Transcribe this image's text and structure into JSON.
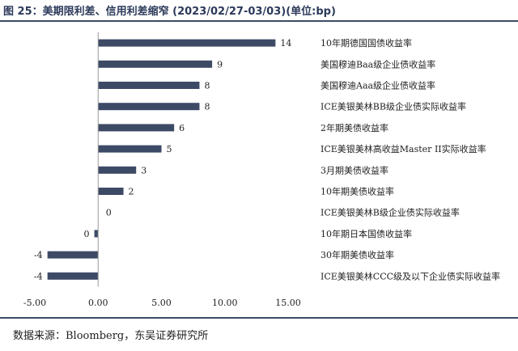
{
  "title": "图 25：美期限利差、信用利差缩窄 (2023/02/27-03/03)(单位:bp)",
  "source": "数据来源：Bloomberg，东吴证券研究所",
  "chart_data": {
    "type": "bar",
    "orientation": "horizontal",
    "categories": [
      "10年期德国国债收益率",
      "美国穆迪Baa级企业债收益率",
      "美国穆迪Aaa级企业债收益率",
      "ICE美银美林BB级企业债实际收益率",
      "2年期美债收益率",
      "ICE美银美林高收益Master II实际收益率",
      "3月期美债收益率",
      "10年期美债收益率",
      "ICE美银美林B级企业债实际收益率",
      "10年期日本国债收益率",
      "30年期美债收益率",
      "ICE美银美林CCC级及以下企业债实际收益率"
    ],
    "values": [
      14,
      9,
      8,
      8,
      6,
      5,
      3,
      2,
      0,
      -0.3,
      -4,
      -4
    ],
    "data_labels": [
      "14",
      "9",
      "8",
      "8",
      "6",
      "5",
      "3",
      "2",
      "0",
      "0",
      "-4",
      "-4"
    ],
    "xlim": [
      -5,
      15
    ],
    "xticks": [
      "-5.00",
      "0.00",
      "5.00",
      "10.00",
      "15.00"
    ],
    "xtick_values": [
      -5,
      0,
      5,
      10,
      15
    ],
    "bar_color": "#3d4a66",
    "grid": false,
    "legend": "none"
  }
}
